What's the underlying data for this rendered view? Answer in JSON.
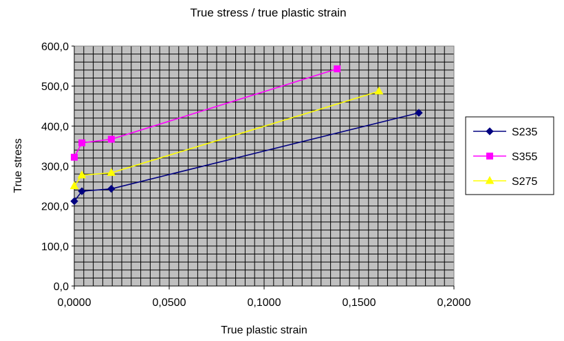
{
  "chart_data": {
    "type": "line",
    "title": "True stress / true plastic strain",
    "xlabel": "True plastic strain",
    "ylabel": "True stress",
    "xlim": [
      0,
      0.2
    ],
    "ylim": [
      0,
      600
    ],
    "x_ticks": [
      "0,0000",
      "0,0500",
      "0,1000",
      "0,1500",
      "0,2000"
    ],
    "y_ticks": [
      "0,0",
      "100,0",
      "200,0",
      "300,0",
      "400,0",
      "500,0",
      "600,0"
    ],
    "grid": true,
    "legend_position": "right",
    "plot_background": "#c0c0c0",
    "series": [
      {
        "name": "S235",
        "color": "#000080",
        "marker": "diamond",
        "points": [
          [
            0.0,
            212
          ],
          [
            0.004,
            237
          ],
          [
            0.0195,
            243
          ],
          [
            0.1815,
            433
          ]
        ]
      },
      {
        "name": "S355",
        "color": "#ff00ff",
        "marker": "square",
        "points": [
          [
            0.0,
            322
          ],
          [
            0.004,
            358
          ],
          [
            0.0195,
            367
          ],
          [
            0.1385,
            543
          ]
        ]
      },
      {
        "name": "S275",
        "color": "#ffff00",
        "marker": "triangle",
        "points": [
          [
            0.0,
            250
          ],
          [
            0.004,
            277
          ],
          [
            0.0195,
            283
          ],
          [
            0.1605,
            487
          ]
        ]
      }
    ]
  }
}
